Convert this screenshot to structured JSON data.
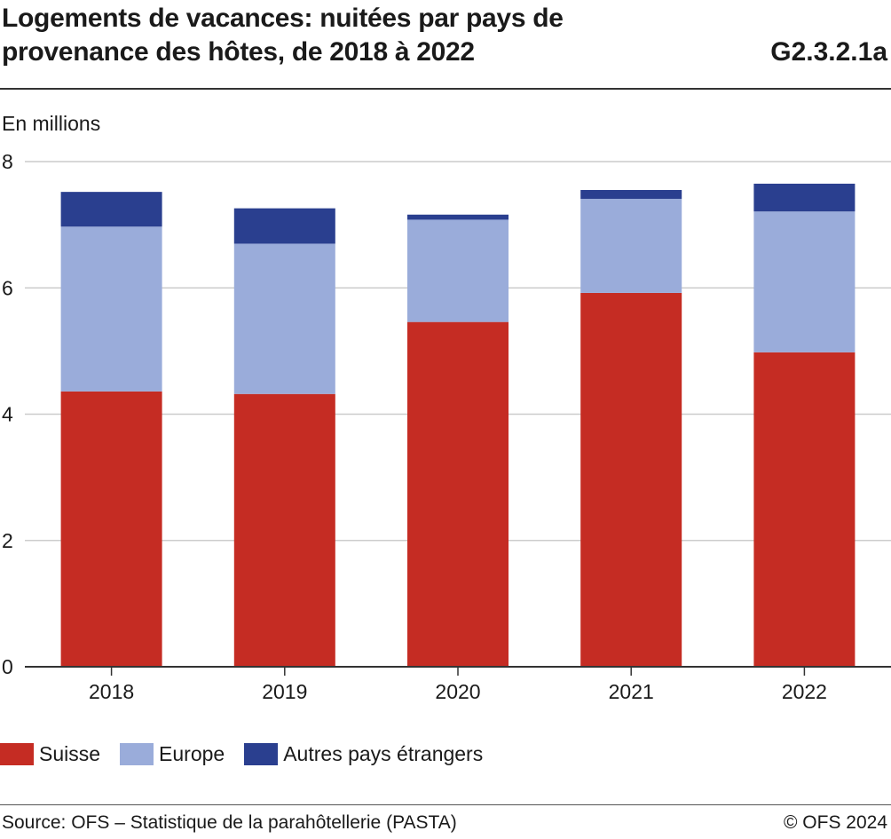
{
  "header": {
    "title": "Logements de vacances: nuitées par pays de provenance des hôtes, de 2018 à 2022",
    "code": "G2.3.2.1a",
    "unit_label": "En millions"
  },
  "footer": {
    "source": "Source: OFS – Statistique de la parahôtellerie (PASTA)",
    "copyright": "© OFS 2024"
  },
  "chart_data": {
    "type": "bar",
    "stacked": true,
    "title": "Logements de vacances: nuitées par pays de provenance des hôtes, de 2018 à 2022",
    "ylabel": "En millions",
    "xlabel": "",
    "ylim": [
      0,
      8
    ],
    "yticks": [
      0,
      2,
      4,
      6,
      8
    ],
    "grid": true,
    "legend_position": "bottom-left",
    "categories": [
      "2018",
      "2019",
      "2020",
      "2021",
      "2022"
    ],
    "series": [
      {
        "name": "Suisse",
        "color": "#c52c23",
        "values": [
          4.36,
          4.32,
          5.46,
          5.92,
          4.98
        ]
      },
      {
        "name": "Europe",
        "color": "#9aacda",
        "values": [
          2.61,
          2.38,
          1.62,
          1.49,
          2.23
        ]
      },
      {
        "name": "Autres pays étrangers",
        "color": "#2a3f8f",
        "values": [
          0.55,
          0.56,
          0.08,
          0.14,
          0.44
        ]
      }
    ]
  }
}
